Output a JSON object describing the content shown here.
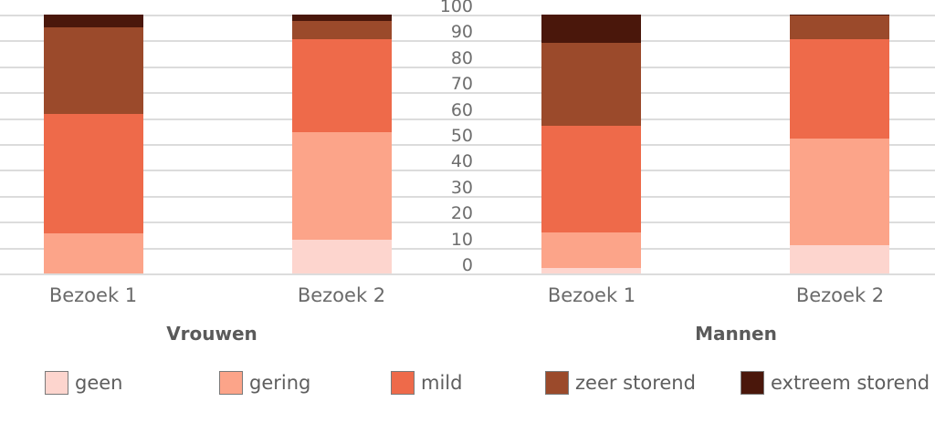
{
  "chart_data": {
    "type": "bar",
    "stacked": true,
    "title": "",
    "xlabel": "",
    "ylabel": "",
    "ylim": [
      0,
      100
    ],
    "yticks": [
      0,
      10,
      20,
      30,
      40,
      50,
      60,
      70,
      80,
      90,
      100
    ],
    "grid": true,
    "legend_position": "bottom",
    "groups": [
      "Vrouwen",
      "Mannen"
    ],
    "categories": [
      "Bezoek 1",
      "Bezoek 2",
      "Bezoek 1",
      "Bezoek 2"
    ],
    "category_groups": [
      "Vrouwen",
      "Vrouwen",
      "Mannen",
      "Mannen"
    ],
    "series": [
      {
        "name": "geen",
        "color": "#FDD5CE",
        "values": [
          0,
          13,
          2,
          11
        ]
      },
      {
        "name": "gering",
        "color": "#FCA489",
        "values": [
          15.5,
          41.5,
          14,
          41
        ]
      },
      {
        "name": "mild",
        "color": "#EE6A4A",
        "values": [
          46,
          36,
          41,
          38.5
        ]
      },
      {
        "name": "zeer storend",
        "color": "#9B4A2B",
        "values": [
          33.5,
          7,
          32,
          9
        ]
      },
      {
        "name": "extreem storend",
        "color": "#4A170B",
        "values": [
          5,
          2.5,
          11,
          0.5
        ]
      }
    ]
  },
  "labels": {
    "ytick_0": "0",
    "ytick_10": "10",
    "ytick_20": "20",
    "ytick_30": "30",
    "ytick_40": "40",
    "ytick_50": "50",
    "ytick_60": "60",
    "ytick_70": "70",
    "ytick_80": "80",
    "ytick_90": "90",
    "ytick_100": "100",
    "x0": "Bezoek 1",
    "x1": "Bezoek 2",
    "x2": "Bezoek 1",
    "x3": "Bezoek 2",
    "group0": "Vrouwen",
    "group1": "Mannen",
    "legend0": "geen",
    "legend1": "gering",
    "legend2": "mild",
    "legend3": "zeer storend",
    "legend4": "extreem storend"
  }
}
